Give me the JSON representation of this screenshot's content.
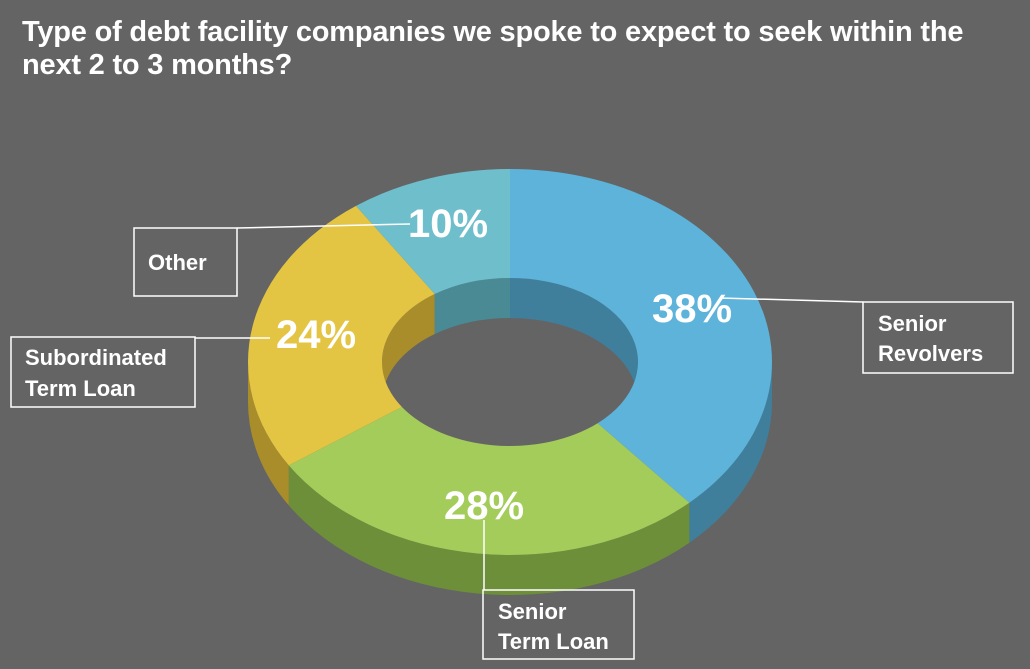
{
  "title": "Type of debt facility companies we spoke to expect to seek within the next 2 to 3 months?",
  "chart_data": {
    "type": "pie",
    "style": "3d-donut",
    "title": "Type of debt facility companies we spoke to expect to seek within the next 2 to 3 months?",
    "slices": [
      {
        "label": "Senior Revolvers",
        "label_lines": [
          "Senior",
          "Revolvers"
        ],
        "value": 38,
        "value_label": "38%",
        "color": "#5db3d9",
        "side_color": "#3f7f9c"
      },
      {
        "label": "Senior Term Loan",
        "label_lines": [
          "Senior",
          "Term Loan"
        ],
        "value": 28,
        "value_label": "28%",
        "color": "#a3cc5a",
        "side_color": "#6e8f3a"
      },
      {
        "label": "Subordinated Term Loan",
        "label_lines": [
          "Subordinated",
          "Term Loan"
        ],
        "value": 24,
        "value_label": "24%",
        "color": "#e3c443",
        "side_color": "#a88d2a"
      },
      {
        "label": "Other",
        "label_lines": [
          "Other"
        ],
        "value": 10,
        "value_label": "10%",
        "color": "#6fbecc",
        "side_color": "#4a8a95"
      }
    ],
    "legend": "callout-boxes",
    "background": "#646464"
  }
}
